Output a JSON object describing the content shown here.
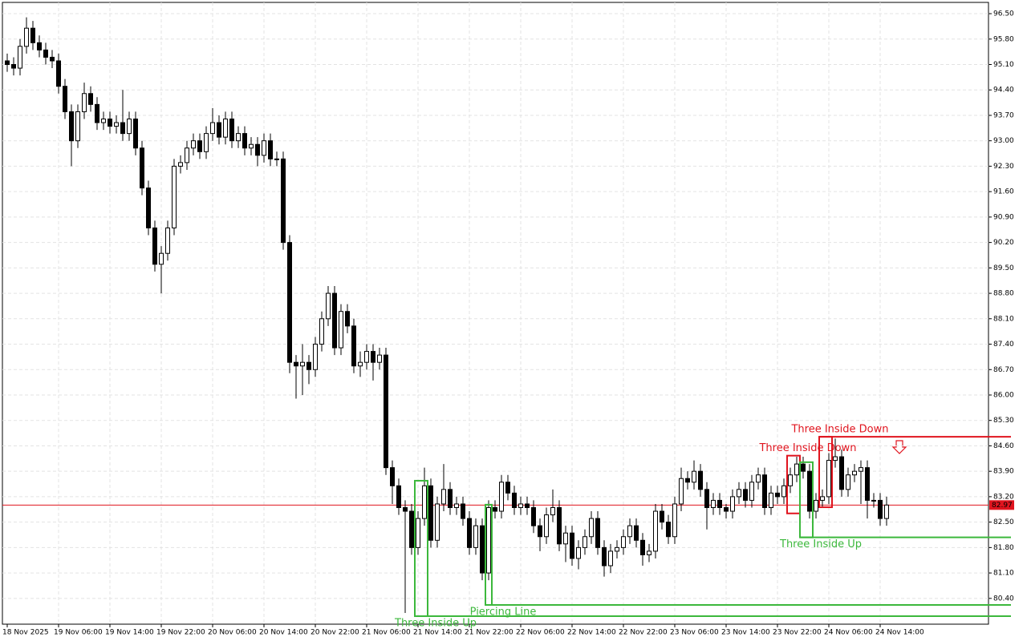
{
  "chart_data": {
    "type": "candlestick",
    "categories": [
      "18 Nov 2025",
      null,
      null,
      null,
      null,
      null,
      null,
      null,
      "19 Nov 06:00",
      null,
      null,
      null,
      null,
      null,
      null,
      null,
      "19 Nov 14:00",
      null,
      null,
      null,
      null,
      null,
      null,
      null,
      "19 Nov 22:00",
      null,
      null,
      null,
      null,
      null,
      null,
      null,
      "20 Nov 06:00",
      null,
      null,
      null,
      null,
      null,
      null,
      null,
      "20 Nov 14:00",
      null,
      null,
      null,
      null,
      null,
      null,
      null,
      "20 Nov 22:00",
      null,
      null,
      null,
      null,
      null,
      null,
      null,
      "21 Nov 06:00",
      null,
      null,
      null,
      null,
      null,
      null,
      null,
      "21 Nov 14:00",
      null,
      null,
      null,
      null,
      null,
      null,
      null,
      "21 Nov 22:00",
      null,
      null,
      null,
      null,
      null,
      null,
      null,
      "22 Nov 06:00",
      null,
      null,
      null,
      null,
      null,
      null,
      null,
      "22 Nov 14:00",
      null,
      null,
      null,
      null,
      null,
      null,
      null,
      "22 Nov 22:00",
      null,
      null,
      null,
      null,
      null,
      null,
      null,
      "23 Nov 06:00",
      null,
      null,
      null,
      null,
      null,
      null,
      null,
      "23 Nov 14:00",
      null,
      null,
      null,
      null,
      null,
      null,
      null,
      "23 Nov 22:00",
      null,
      null,
      null,
      null,
      null,
      null,
      null,
      "24 Nov 06:00",
      null,
      null,
      null,
      null,
      null,
      null,
      null,
      "24 Nov 14:00",
      null
    ],
    "open": [
      95.2,
      95.1,
      95.0,
      95.6,
      96.1,
      95.7,
      95.5,
      95.3,
      95.2,
      94.5,
      93.8,
      93.0,
      93.8,
      94.3,
      94.0,
      93.5,
      93.6,
      93.4,
      93.5,
      93.2,
      93.6,
      92.8,
      91.7,
      90.6,
      89.6,
      89.9,
      90.6,
      92.3,
      92.4,
      92.8,
      93.0,
      92.7,
      93.2,
      93.5,
      93.1,
      93.6,
      93.0,
      93.2,
      92.8,
      92.9,
      92.6,
      93.0,
      92.5,
      92.5,
      90.2,
      86.9,
      86.8,
      86.9,
      86.7,
      87.4,
      88.1,
      88.8,
      87.3,
      88.3,
      87.9,
      86.8,
      86.9,
      87.2,
      86.9,
      87.1,
      84.0,
      83.5,
      82.9,
      82.8,
      81.8,
      82.6,
      83.5,
      82.0,
      83.0,
      83.4,
      82.9,
      83.0,
      82.6,
      81.8,
      82.4,
      81.1,
      82.9,
      82.8,
      83.6,
      83.3,
      82.9,
      83.0,
      82.9,
      82.4,
      82.1,
      82.7,
      82.9,
      81.9,
      82.2,
      81.5,
      81.8,
      82.1,
      82.6,
      81.8,
      81.3,
      81.7,
      81.8,
      82.1,
      82.4,
      82.0,
      81.6,
      81.7,
      82.8,
      82.5,
      82.1,
      83.0,
      83.7,
      83.6,
      83.9,
      83.4,
      82.9,
      83.1,
      82.9,
      82.8,
      83.2,
      83.4,
      83.1,
      83.6,
      83.8,
      82.9,
      83.3,
      83.2,
      83.5,
      83.8,
      84.1,
      83.9,
      82.8,
      83.1,
      83.2,
      84.2,
      84.3,
      83.4,
      83.8,
      83.9,
      84.0,
      83.1,
      83.1,
      82.6
    ],
    "high": [
      95.4,
      95.3,
      95.8,
      96.4,
      96.3,
      95.9,
      95.7,
      95.5,
      95.4,
      94.7,
      94.0,
      94.0,
      94.6,
      94.5,
      94.2,
      93.8,
      93.8,
      93.7,
      94.4,
      93.8,
      93.8,
      93.0,
      91.9,
      90.8,
      90.1,
      90.8,
      92.5,
      92.6,
      93.0,
      93.2,
      93.2,
      93.4,
      93.9,
      93.7,
      93.8,
      93.8,
      93.4,
      93.4,
      93.1,
      93.1,
      93.2,
      93.2,
      92.7,
      92.7,
      90.4,
      87.1,
      87.4,
      87.1,
      87.6,
      88.3,
      89.0,
      89.0,
      88.5,
      88.5,
      88.1,
      87.2,
      87.4,
      87.4,
      87.3,
      87.3,
      84.2,
      83.7,
      83.1,
      83.0,
      82.8,
      84.0,
      83.7,
      83.2,
      84.1,
      83.6,
      83.2,
      83.2,
      82.8,
      82.6,
      82.6,
      83.1,
      83.1,
      83.8,
      83.8,
      83.5,
      83.2,
      83.2,
      83.1,
      82.6,
      82.9,
      83.4,
      83.1,
      82.4,
      82.4,
      82.0,
      82.3,
      82.8,
      82.8,
      82.0,
      81.9,
      82.0,
      82.3,
      82.6,
      82.6,
      82.2,
      81.9,
      83.0,
      83.0,
      82.7,
      83.2,
      84.0,
      83.9,
      84.2,
      84.1,
      83.6,
      83.3,
      83.3,
      83.0,
      83.4,
      83.6,
      83.6,
      83.8,
      84.0,
      84.0,
      83.5,
      83.5,
      83.7,
      84.0,
      84.3,
      84.3,
      84.1,
      83.3,
      83.4,
      84.4,
      84.8,
      84.5,
      84.0,
      84.1,
      84.2,
      84.2,
      83.3,
      83.3,
      83.2
    ],
    "low": [
      94.9,
      94.8,
      94.8,
      95.4,
      95.5,
      95.3,
      95.1,
      95.0,
      94.3,
      93.6,
      92.3,
      92.8,
      93.6,
      93.8,
      93.3,
      93.3,
      93.2,
      93.2,
      93.0,
      93.0,
      92.6,
      91.5,
      90.4,
      89.4,
      88.8,
      89.7,
      90.4,
      92.1,
      92.2,
      92.6,
      92.5,
      92.5,
      93.0,
      92.9,
      92.9,
      92.8,
      92.8,
      92.6,
      92.6,
      92.3,
      92.4,
      92.3,
      92.3,
      90.0,
      86.6,
      85.9,
      86.0,
      86.3,
      86.5,
      87.2,
      87.9,
      87.1,
      87.1,
      87.7,
      86.6,
      86.5,
      86.7,
      86.4,
      86.7,
      83.8,
      83.0,
      82.7,
      80.0,
      81.6,
      81.6,
      82.4,
      81.8,
      81.8,
      82.8,
      82.7,
      82.7,
      82.4,
      81.6,
      81.6,
      80.9,
      80.9,
      82.6,
      82.6,
      83.1,
      82.7,
      82.7,
      82.7,
      82.2,
      81.7,
      81.9,
      82.5,
      81.7,
      81.4,
      81.3,
      81.2,
      81.6,
      81.9,
      81.6,
      81.0,
      81.1,
      81.5,
      81.6,
      81.9,
      81.8,
      81.3,
      81.4,
      81.5,
      82.3,
      81.9,
      81.9,
      82.8,
      83.4,
      83.4,
      83.2,
      82.3,
      82.7,
      82.7,
      82.6,
      82.6,
      83.0,
      82.9,
      82.9,
      83.4,
      82.7,
      82.7,
      83.0,
      83.0,
      83.3,
      83.6,
      83.7,
      82.6,
      82.6,
      82.9,
      83.0,
      84.0,
      83.2,
      83.2,
      83.6,
      83.0,
      82.6,
      82.9,
      82.4,
      82.4
    ],
    "close": [
      95.1,
      95.0,
      95.6,
      96.1,
      95.7,
      95.5,
      95.3,
      95.2,
      94.5,
      93.8,
      93.0,
      93.8,
      94.3,
      94.0,
      93.5,
      93.6,
      93.4,
      93.5,
      93.2,
      93.6,
      92.8,
      91.7,
      90.6,
      89.6,
      89.9,
      90.6,
      92.3,
      92.4,
      92.8,
      93.0,
      92.7,
      93.2,
      93.5,
      93.1,
      93.6,
      93.0,
      93.2,
      92.8,
      92.9,
      92.6,
      93.0,
      92.5,
      92.5,
      90.2,
      86.9,
      86.8,
      86.9,
      86.7,
      87.4,
      88.1,
      88.8,
      87.3,
      88.3,
      87.9,
      86.8,
      86.9,
      87.2,
      86.9,
      87.1,
      84.0,
      83.5,
      82.9,
      82.8,
      81.8,
      82.6,
      83.5,
      82.0,
      83.0,
      83.4,
      82.9,
      83.0,
      82.6,
      81.8,
      82.4,
      81.1,
      82.9,
      82.8,
      83.6,
      83.3,
      82.9,
      83.0,
      82.9,
      82.4,
      82.1,
      82.7,
      82.9,
      81.9,
      82.2,
      81.5,
      81.8,
      82.1,
      82.6,
      81.8,
      81.3,
      81.7,
      81.8,
      82.1,
      82.4,
      82.0,
      81.6,
      81.7,
      82.8,
      82.5,
      82.1,
      83.0,
      83.7,
      83.6,
      83.9,
      83.4,
      82.9,
      83.1,
      82.9,
      82.8,
      83.2,
      83.4,
      83.1,
      83.6,
      83.8,
      82.9,
      83.3,
      83.2,
      83.5,
      83.8,
      84.1,
      83.9,
      82.8,
      83.1,
      83.2,
      84.2,
      84.3,
      83.4,
      83.8,
      83.9,
      84.0,
      83.1,
      83.1,
      82.6,
      82.97
    ],
    "ylim": [
      79.69,
      96.81
    ],
    "yticks": [
      {
        "value": 96.5,
        "label": "96.50"
      },
      {
        "value": 95.8,
        "label": "95.80"
      },
      {
        "value": 95.1,
        "label": "95.10"
      },
      {
        "value": 94.4,
        "label": "94.40"
      },
      {
        "value": 93.7,
        "label": "93.70"
      },
      {
        "value": 93.0,
        "label": "93.00"
      },
      {
        "value": 92.3,
        "label": "92.30"
      },
      {
        "value": 91.6,
        "label": "91.60"
      },
      {
        "value": 90.9,
        "label": "90.90"
      },
      {
        "value": 90.2,
        "label": "90.20"
      },
      {
        "value": 89.5,
        "label": "89.50"
      },
      {
        "value": 88.8,
        "label": "88.80"
      },
      {
        "value": 88.1,
        "label": "88.10"
      },
      {
        "value": 87.4,
        "label": "87.40"
      },
      {
        "value": 86.7,
        "label": "86.70"
      },
      {
        "value": 86.0,
        "label": "86.00"
      },
      {
        "value": 85.3,
        "label": "85.30"
      },
      {
        "value": 84.6,
        "label": "84.60"
      },
      {
        "value": 83.9,
        "label": "83.90"
      },
      {
        "value": 83.2,
        "label": "83.20"
      },
      {
        "value": 82.5,
        "label": "82.50"
      },
      {
        "value": 81.8,
        "label": "81.80"
      },
      {
        "value": 81.1,
        "label": "81.10"
      },
      {
        "value": 80.4,
        "label": "80.40"
      }
    ],
    "grid": true,
    "last_price": 82.97,
    "bull_color": "#ffffff",
    "bear_color": "#000000",
    "price_color": "#e0141e",
    "annotations": [
      {
        "text": "Three Inside Up",
        "color": "#3cb83c",
        "bars": [
          64,
          65
        ],
        "zone": [
          79.91,
          83.64
        ],
        "level": 79.91
      },
      {
        "text": "Piercing Line",
        "color": "#3cb83c",
        "bars": [
          75,
          75
        ],
        "zone": [
          80.22,
          82.98
        ],
        "level": 80.22
      },
      {
        "text": "Three Inside Down",
        "color": "#e0141e",
        "bars": [
          122,
          123
        ],
        "zone": [
          82.74,
          84.33
        ]
      },
      {
        "text": "Three Inside Up",
        "color": "#3cb83c",
        "bars": [
          124,
          125
        ],
        "zone": [
          82.08,
          84.15
        ],
        "level": 82.08
      },
      {
        "text": "Three Inside Down",
        "color": "#e0141e",
        "bars": [
          127,
          128
        ],
        "zone": [
          82.91,
          84.85
        ],
        "level": 84.85
      }
    ]
  }
}
